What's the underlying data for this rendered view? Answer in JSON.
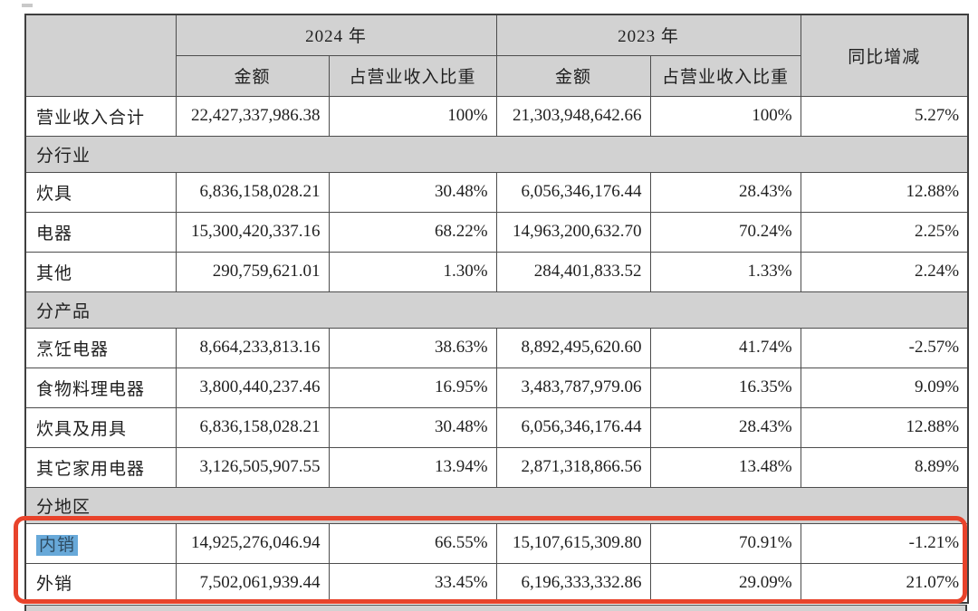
{
  "page": {
    "background": "#ffffff"
  },
  "table": {
    "header": {
      "corner": "",
      "year_2024": "2024 年",
      "year_2023": "2023 年",
      "yoy": "同比增减",
      "amount_2024": "金额",
      "pct_2024": "占营业收入比重",
      "amount_2023": "金额",
      "pct_2023": "占营业收入比重"
    },
    "rows": [
      {
        "type": "total",
        "label": "营业收入合计",
        "amount_2024": "22,427,337,986.38",
        "pct_2024": "100%",
        "amount_2023": "21,303,948,642.66",
        "pct_2023": "100%",
        "yoy": "5.27%"
      },
      {
        "type": "section",
        "label": "分行业"
      },
      {
        "type": "data",
        "label": "炊具",
        "amount_2024": "6,836,158,028.21",
        "pct_2024": "30.48%",
        "amount_2023": "6,056,346,176.44",
        "pct_2023": "28.43%",
        "yoy": "12.88%"
      },
      {
        "type": "data",
        "label": "电器",
        "amount_2024": "15,300,420,337.16",
        "pct_2024": "68.22%",
        "amount_2023": "14,963,200,632.70",
        "pct_2023": "70.24%",
        "yoy": "2.25%"
      },
      {
        "type": "data",
        "label": "其他",
        "amount_2024": "290,759,621.01",
        "pct_2024": "1.30%",
        "amount_2023": "284,401,833.52",
        "pct_2023": "1.33%",
        "yoy": "2.24%"
      },
      {
        "type": "section",
        "label": "分产品"
      },
      {
        "type": "data",
        "label": "烹饪电器",
        "amount_2024": "8,664,233,813.16",
        "pct_2024": "38.63%",
        "amount_2023": "8,892,495,620.60",
        "pct_2023": "41.74%",
        "yoy": "-2.57%"
      },
      {
        "type": "data",
        "label": "食物料理电器",
        "amount_2024": "3,800,440,237.46",
        "pct_2024": "16.95%",
        "amount_2023": "3,483,787,979.06",
        "pct_2023": "16.35%",
        "yoy": "9.09%"
      },
      {
        "type": "data",
        "label": "炊具及用具",
        "amount_2024": "6,836,158,028.21",
        "pct_2024": "30.48%",
        "amount_2023": "6,056,346,176.44",
        "pct_2023": "28.43%",
        "yoy": "12.88%"
      },
      {
        "type": "data",
        "label": "其它家用电器",
        "amount_2024": "3,126,505,907.55",
        "pct_2024": "13.94%",
        "amount_2023": "2,871,318,866.56",
        "pct_2023": "13.48%",
        "yoy": "8.89%"
      },
      {
        "type": "section",
        "label": "分地区"
      },
      {
        "type": "data",
        "label": "内销",
        "selected": true,
        "amount_2024": "14,925,276,046.94",
        "pct_2024": "66.55%",
        "amount_2023": "15,107,615,309.80",
        "pct_2023": "70.91%",
        "yoy": "-1.21%"
      },
      {
        "type": "data",
        "label": "外销",
        "amount_2024": "7,502,061,939.44",
        "pct_2024": "33.45%",
        "amount_2023": "6,196,333,332.86",
        "pct_2023": "29.09%",
        "yoy": "21.07%"
      }
    ]
  },
  "annotation": {
    "shape": "rounded-rectangle",
    "color": "#e8432b",
    "rows_enclosed": [
      "内销",
      "外销"
    ]
  },
  "selection": {
    "text": "内销",
    "background": "#68a9d9"
  },
  "colors": {
    "cell_gray": "#d2d2d2",
    "border": "#4d4d4d",
    "text": "#1f1f1f"
  }
}
